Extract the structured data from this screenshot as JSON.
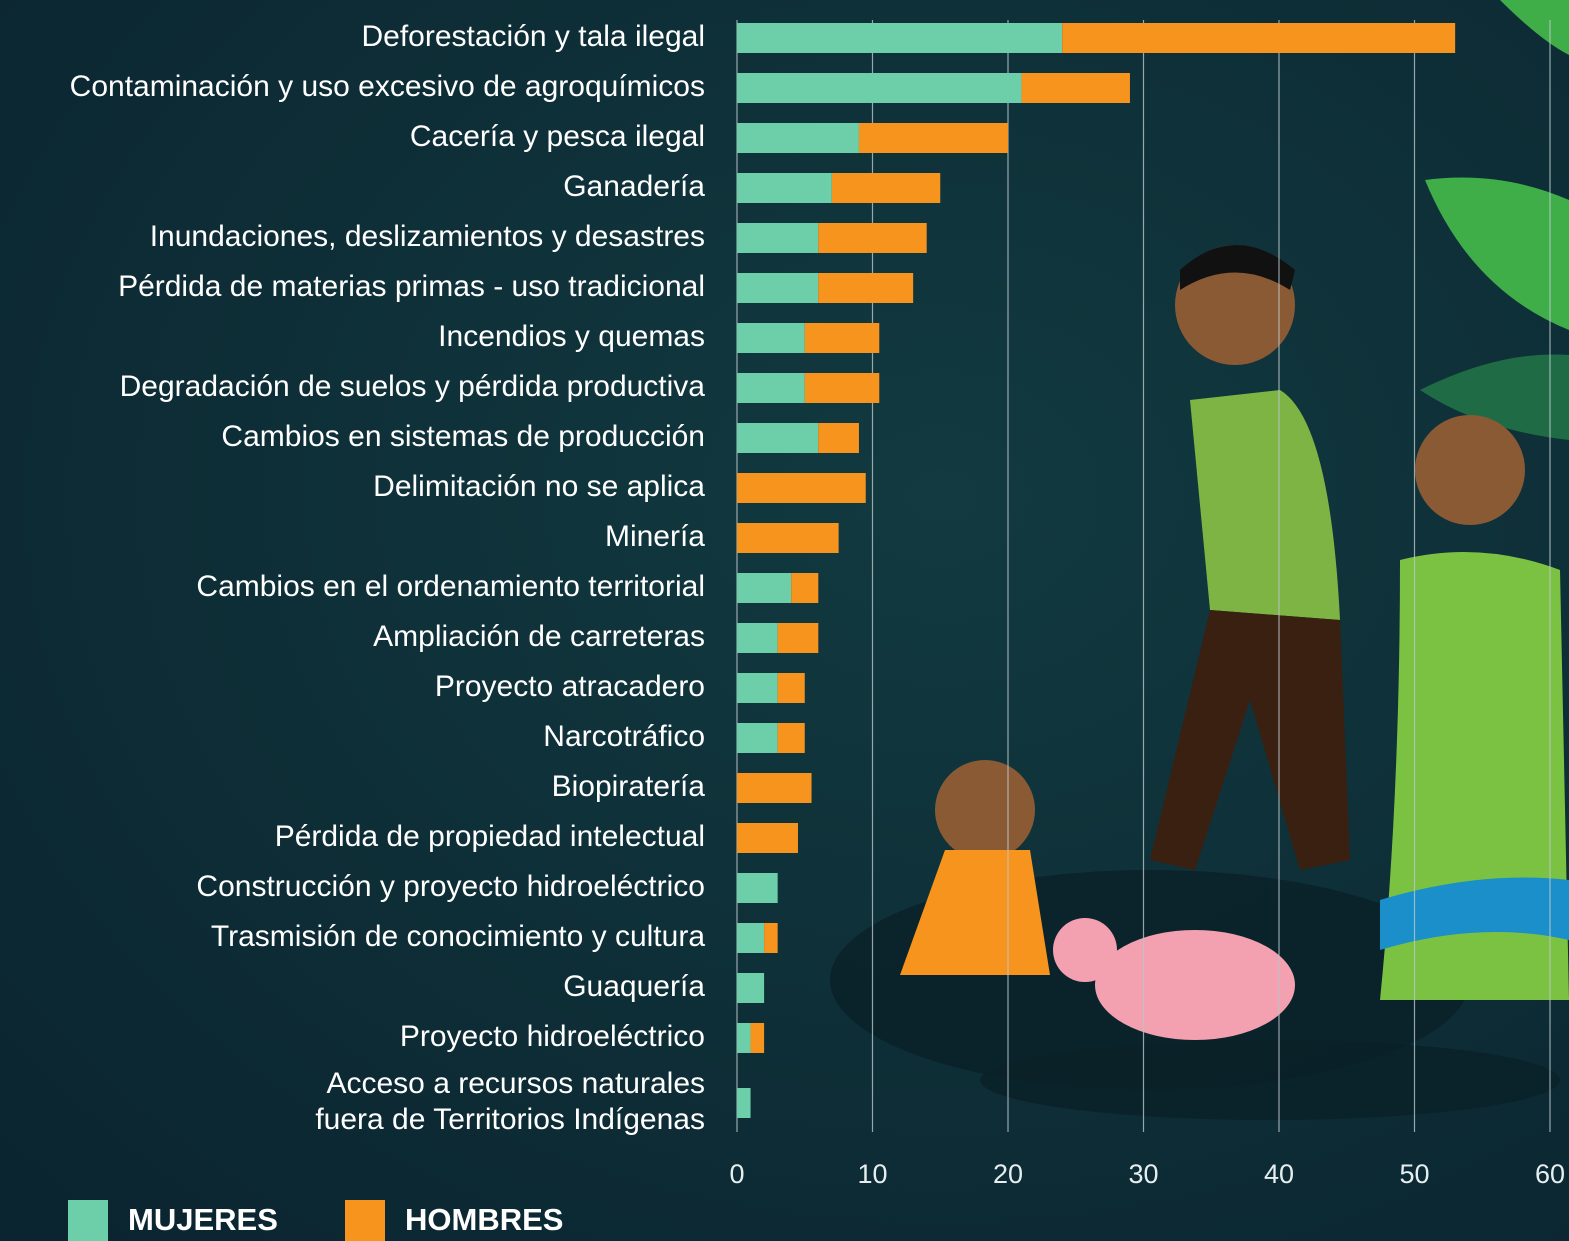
{
  "chart_data": {
    "type": "stacked-barh",
    "categories": [
      "Deforestación y tala ilegal",
      "Contaminación y uso excesivo de agroquímicos",
      "Cacería y pesca ilegal",
      "Ganadería",
      "Inundaciones, deslizamientos y desastres",
      "Pérdida de materias primas - uso tradicional",
      "Incendios y quemas",
      "Degradación de suelos y pérdida productiva",
      "Cambios en sistemas de producción",
      "Delimitación no se aplica",
      "Minería",
      "Cambios en el ordenamiento territorial",
      "Ampliación de carreteras",
      "Proyecto atracadero",
      "Narcotráfico",
      "Biopiratería",
      "Pérdida de propiedad intelectual",
      "Construcción y proyecto hidroeléctrico",
      "Trasmisión de conocimiento y cultura",
      "Guaquería",
      "Proyecto hidroeléctrico",
      "Acceso a recursos naturales\nfuera de Territorios Indígenas"
    ],
    "series": [
      {
        "name": "MUJERES",
        "color": "#6dcfaa",
        "values": [
          24,
          21,
          9,
          7,
          6,
          6,
          5,
          5,
          6,
          0,
          0,
          4,
          3,
          3,
          3,
          0,
          0,
          3,
          2,
          2,
          1,
          1
        ]
      },
      {
        "name": "HOMBRES",
        "color": "#f7941d",
        "values": [
          29,
          8,
          11,
          8,
          8,
          7,
          5.5,
          5.5,
          3,
          9.5,
          7.5,
          2,
          3,
          2,
          2,
          5.5,
          4.5,
          0,
          1,
          0,
          1,
          0
        ]
      }
    ],
    "xlim": [
      0,
      60
    ],
    "xticks": [
      0,
      10,
      20,
      30,
      40,
      50,
      60
    ],
    "grid": true
  }
}
